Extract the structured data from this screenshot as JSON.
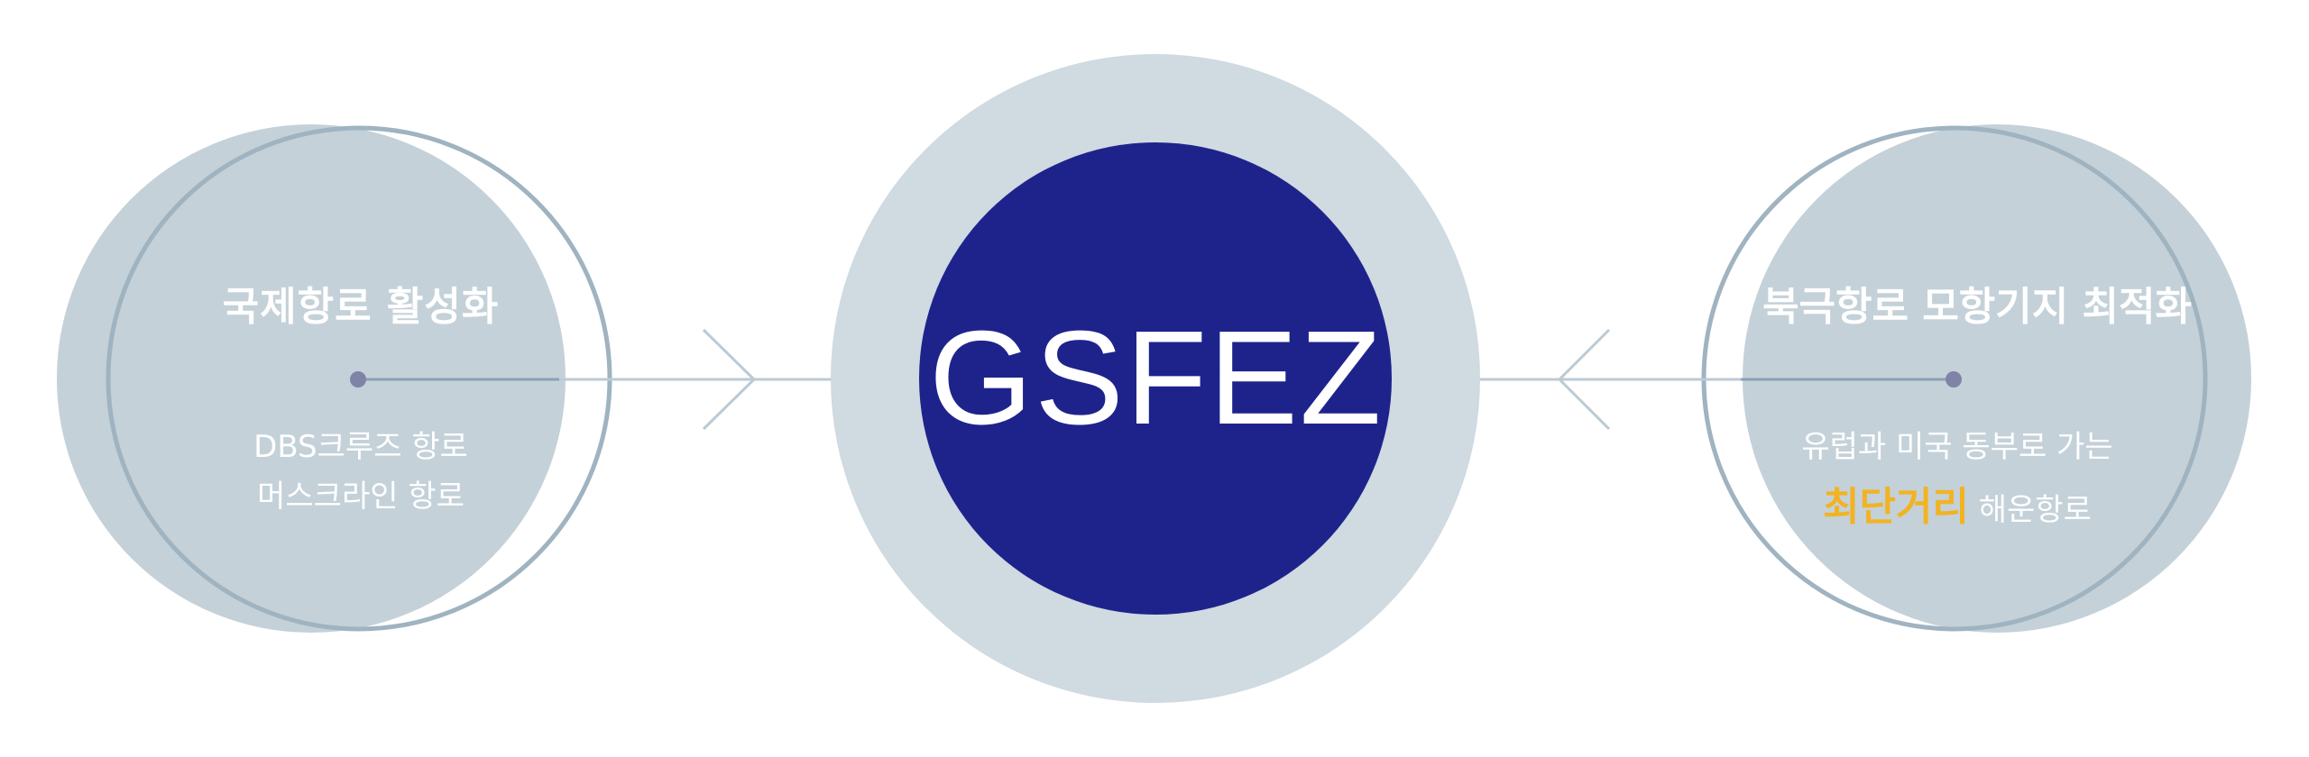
{
  "center": {
    "label": "GSFEZ"
  },
  "left": {
    "title": "국제항로 활성화",
    "lines": [
      "DBS크루즈 항로",
      "머스크라인 항로"
    ]
  },
  "right": {
    "title": "북극항로 모항기지 최적화",
    "line1": "유럽과 미국 동부로 가는",
    "highlight": "최단거리",
    "line2_rest": " 해운항로"
  },
  "colors": {
    "center_fill": "#1e238c",
    "center_halo": "#cfdae1",
    "side_fill": "#c4d1d8",
    "side_outline": "#9fb3c1",
    "connector": "#bccad4",
    "node_dot": "#7f84a6",
    "highlight": "#f2b322"
  }
}
